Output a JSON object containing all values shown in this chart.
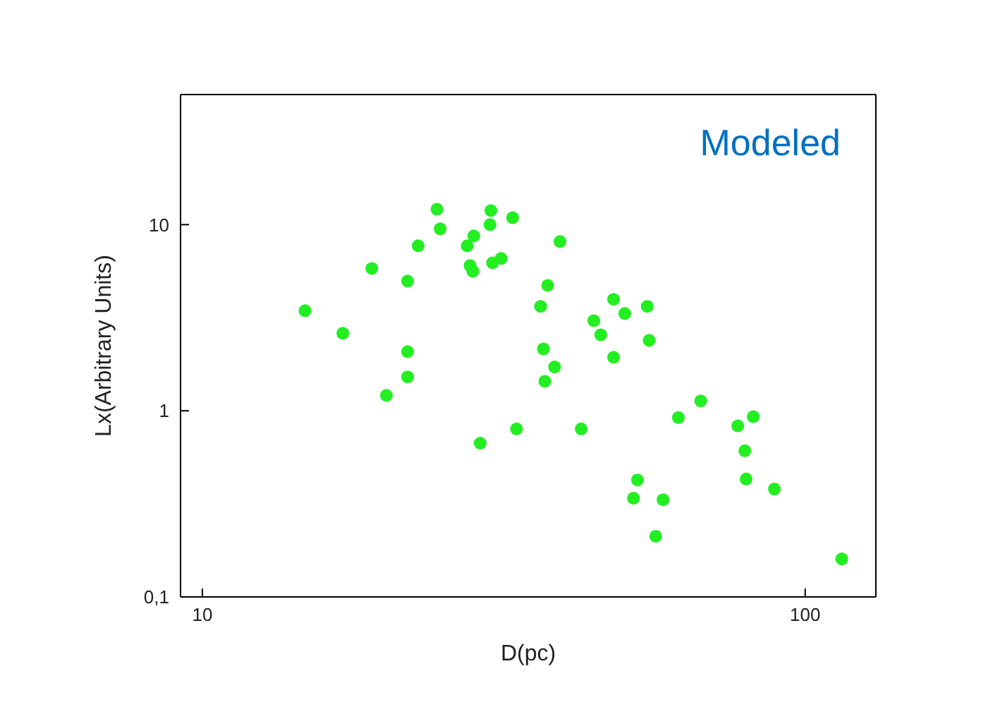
{
  "chart_data": {
    "type": "scatter",
    "xlabel": "D(pc)",
    "ylabel": "Lx(Arbitrary Units)",
    "annotations": [
      "Modeled"
    ],
    "log": "xy",
    "xlim": [
      9.2,
      131
    ],
    "ylim": [
      0.1,
      50
    ],
    "xticks": [
      10,
      100
    ],
    "yticks": [
      {
        "value": 0.1,
        "label": "0,1"
      },
      1,
      10
    ],
    "grid": false,
    "legend": false,
    "marker": "circle",
    "series": [
      {
        "color": "#22ee22",
        "x": [
          14.8,
          17.1,
          19.1,
          20.2,
          21.9,
          21.9,
          21.9,
          22.8,
          24.5,
          24.8,
          27.5,
          27.8,
          28.1,
          28.2,
          28.9,
          30.0,
          30.1,
          30.3,
          31.3,
          32.7,
          33.2,
          36.4,
          37.4,
          36.8,
          37.0,
          38.4,
          39.2,
          42.5,
          44.6,
          45.8,
          48.1,
          48.1,
          50.2,
          54.7,
          55.1,
          52.7,
          51.9,
          58.1,
          56.5,
          61.6,
          67.1,
          77.3,
          82.0,
          79.4,
          79.8,
          88.9,
          115
        ],
        "values": [
          3.45,
          2.61,
          5.82,
          1.21,
          4.98,
          2.08,
          1.52,
          7.7,
          12.1,
          9.5,
          7.7,
          6.03,
          5.62,
          8.7,
          0.67,
          10,
          11.9,
          6.24,
          6.58,
          10.9,
          0.8,
          3.64,
          4.72,
          2.15,
          1.44,
          1.72,
          8.11,
          0.8,
          3.05,
          2.56,
          3.97,
          1.94,
          3.33,
          3.64,
          2.39,
          0.425,
          0.339,
          0.333,
          0.212,
          0.92,
          1.13,
          0.83,
          0.93,
          0.61,
          0.43,
          0.38,
          0.16
        ]
      }
    ]
  }
}
